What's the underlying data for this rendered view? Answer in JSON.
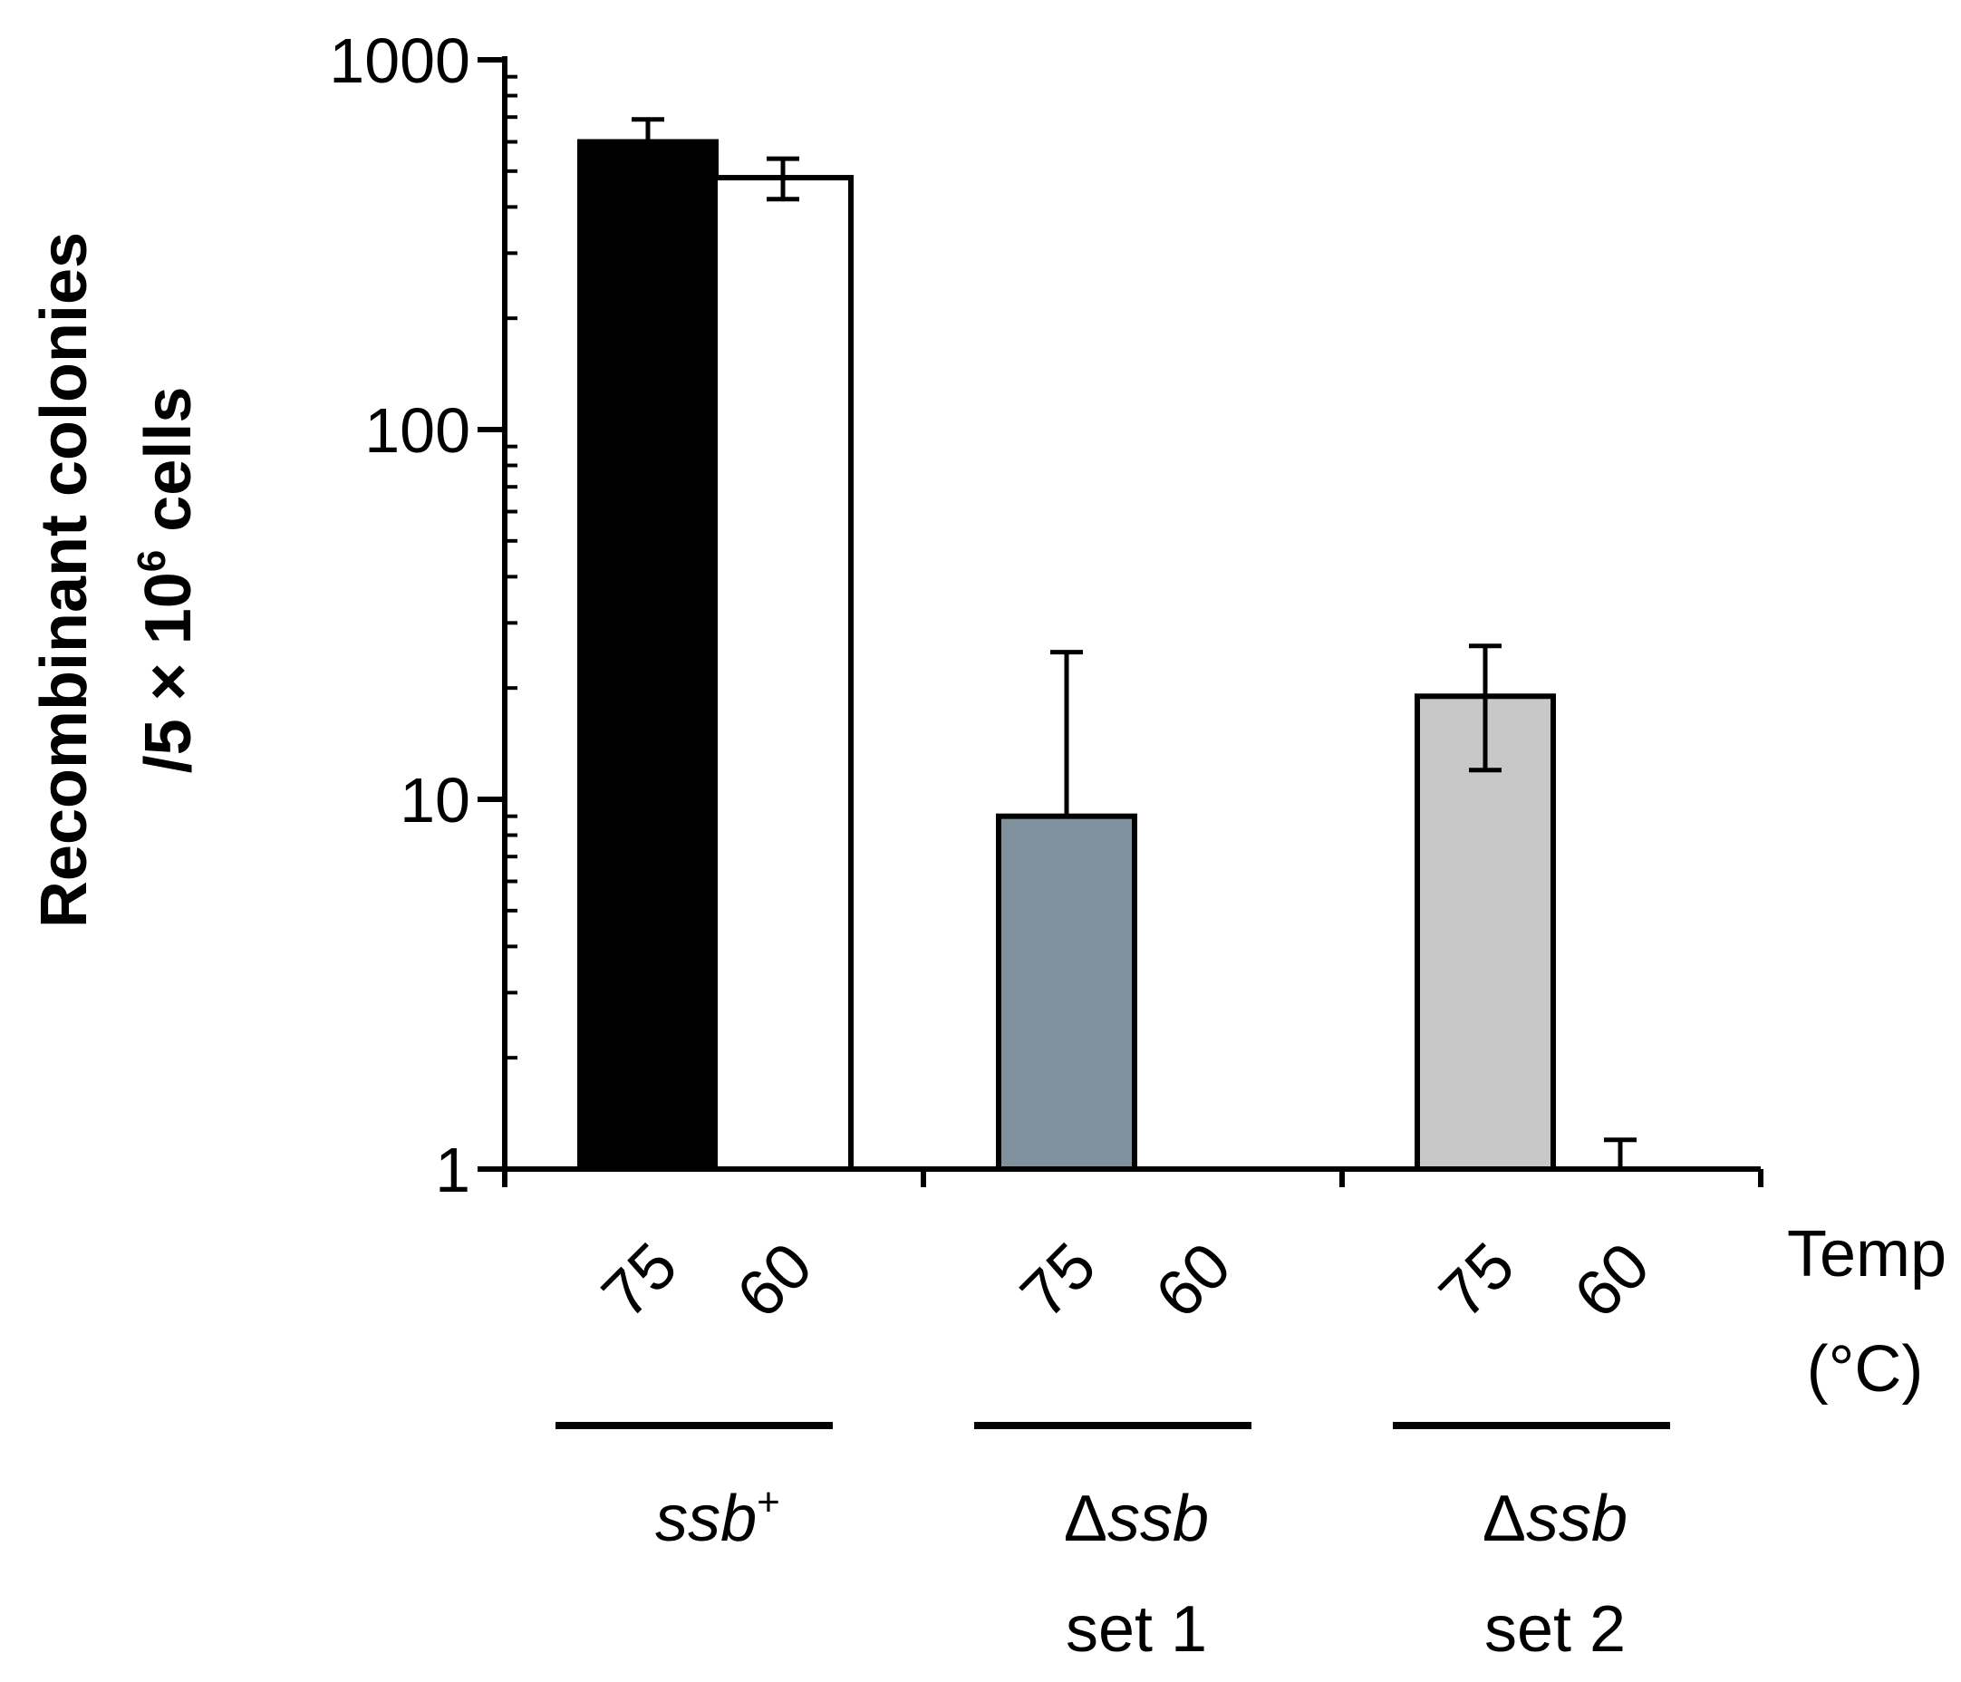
{
  "chart_data": {
    "type": "bar",
    "scale": "log",
    "ylim": [
      1,
      1000
    ],
    "yticks": [
      "1",
      "10",
      "100",
      "1000"
    ],
    "ylabel_line1": "Recombinant colonies",
    "ylabel_line2_prefix": "/5 × 10",
    "ylabel_line2_sup": "6",
    "ylabel_line2_suffix": " cells",
    "temp_label_line1": "Temp",
    "temp_label_line2": "(°C)",
    "groups": [
      {
        "label_main": "ssb",
        "label_sup": "+",
        "label_prefix": "",
        "label_line2": "",
        "bars": [
          {
            "temp": "75",
            "value": 600,
            "err_hi": 690,
            "err_lo": null,
            "color": "#000000"
          },
          {
            "temp": "60",
            "value": 480,
            "err_hi": 540,
            "err_lo": 420,
            "color": "#ffffff"
          }
        ]
      },
      {
        "label_main": "ssb",
        "label_sup": "",
        "label_prefix": "Δ",
        "label_line2": "set 1",
        "bars": [
          {
            "temp": "75",
            "value": 9,
            "err_hi": 25,
            "err_lo": null,
            "color": "#7f919c"
          },
          {
            "temp": "60",
            "value": null,
            "err_hi": null,
            "err_lo": null,
            "color": "#ffffff"
          }
        ]
      },
      {
        "label_main": "ssb",
        "label_sup": "",
        "label_prefix": "Δ",
        "label_line2": "set 2",
        "bars": [
          {
            "temp": "75",
            "value": 19,
            "err_hi": 26,
            "err_lo": 12,
            "color": "#c8c8c8"
          },
          {
            "temp": "60",
            "value": 1,
            "err_hi": 1.2,
            "err_lo": null,
            "color": "#ffffff"
          }
        ]
      }
    ]
  }
}
